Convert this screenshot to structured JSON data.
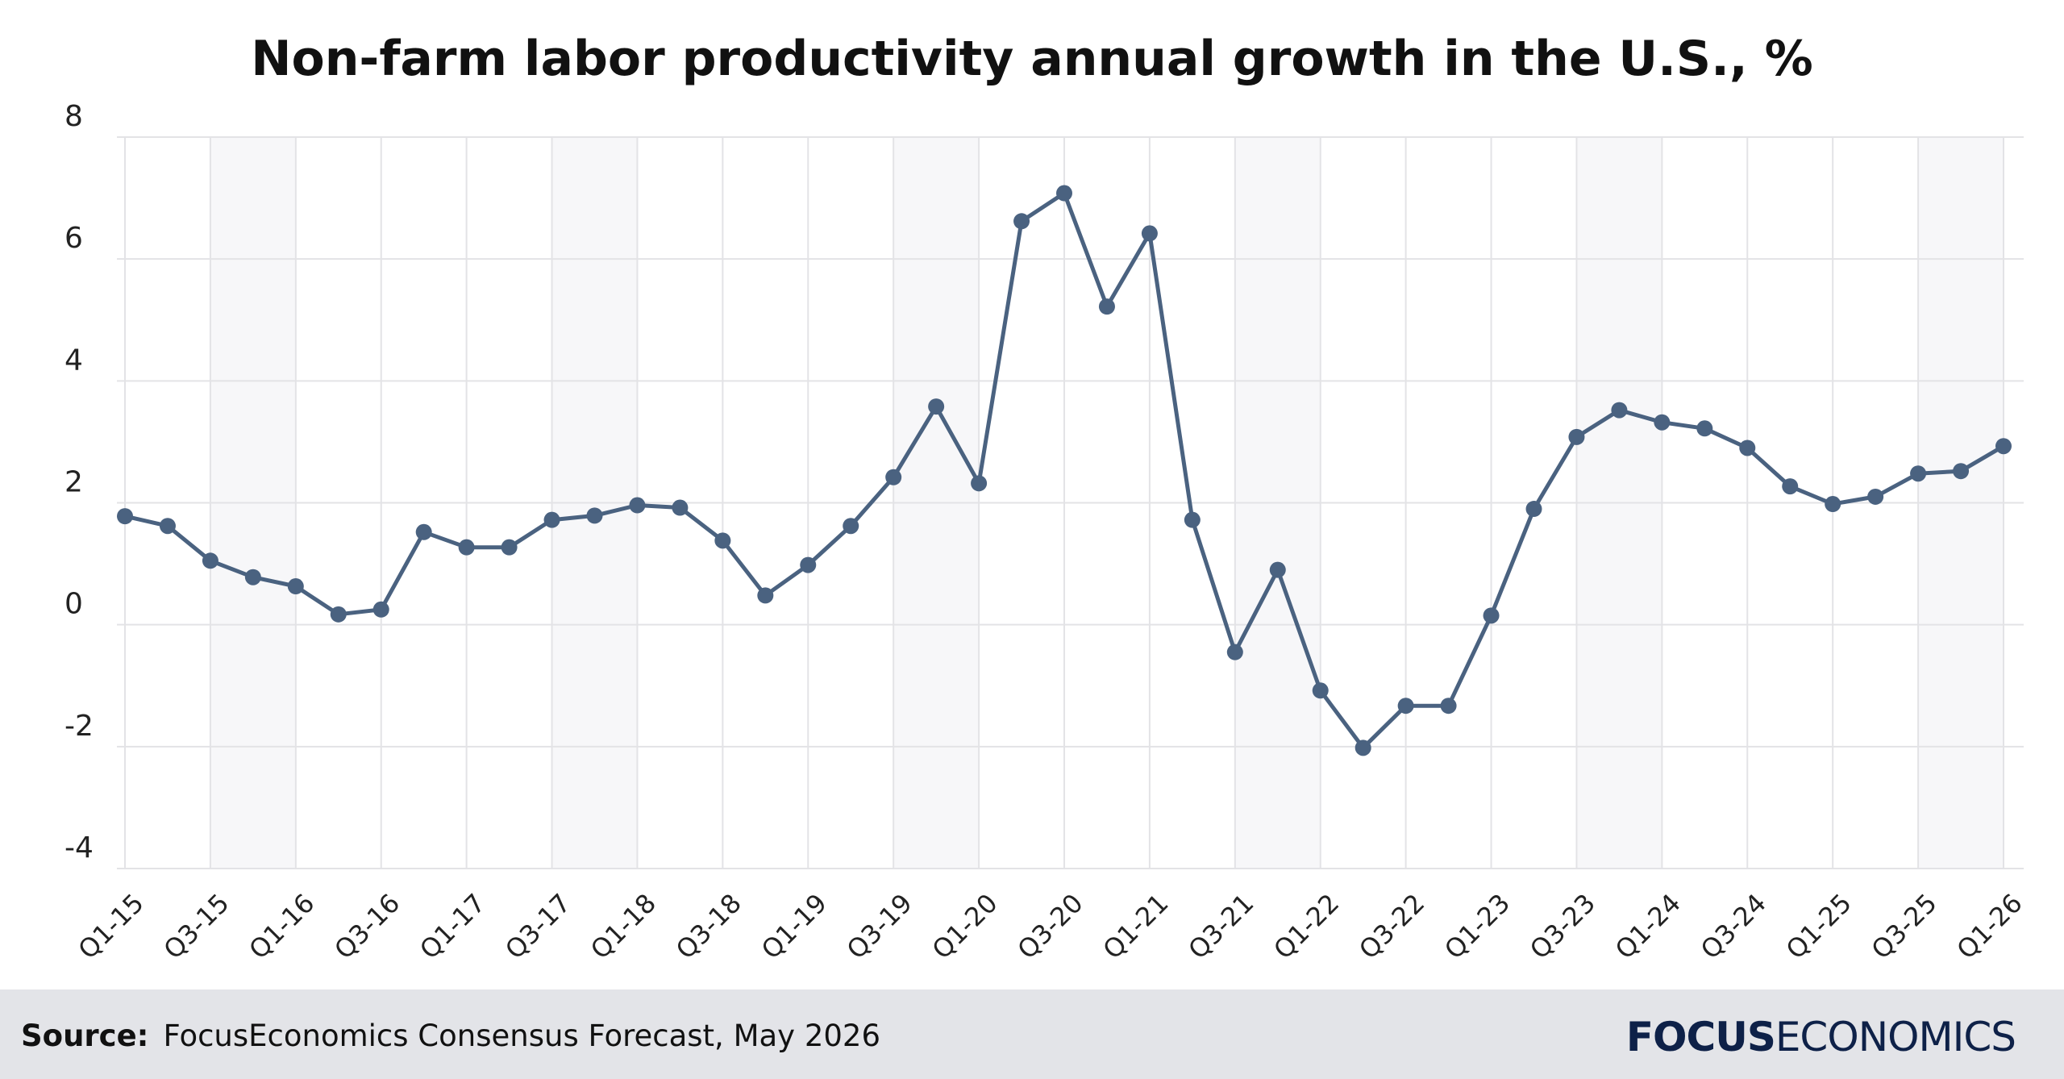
{
  "chart_data": {
    "type": "line",
    "title": "Non-farm labor productivity annual growth in the U.S., %",
    "ylim": [
      -4,
      8
    ],
    "yticks": [
      8,
      6,
      4,
      2,
      0,
      -2,
      -4
    ],
    "grid": true,
    "legend": "none",
    "x": [
      "Q1-15",
      "Q2-15",
      "Q3-15",
      "Q4-15",
      "Q1-16",
      "Q2-16",
      "Q3-16",
      "Q4-16",
      "Q1-17",
      "Q2-17",
      "Q3-17",
      "Q4-17",
      "Q1-18",
      "Q2-18",
      "Q3-18",
      "Q4-18",
      "Q1-19",
      "Q2-19",
      "Q3-19",
      "Q4-19",
      "Q1-20",
      "Q2-20",
      "Q3-20",
      "Q4-20",
      "Q1-21",
      "Q2-21",
      "Q3-21",
      "Q4-21",
      "Q1-22",
      "Q2-22",
      "Q3-22",
      "Q4-22",
      "Q1-23",
      "Q2-23",
      "Q3-23",
      "Q4-23",
      "Q1-24",
      "Q2-24",
      "Q3-24",
      "Q4-24",
      "Q1-25",
      "Q2-25",
      "Q3-25",
      "Q4-25",
      "Q1-26"
    ],
    "x_tick_labels": [
      "Q1-15",
      "Q3-15",
      "Q1-16",
      "Q3-16",
      "Q1-17",
      "Q3-17",
      "Q1-18",
      "Q3-18",
      "Q1-19",
      "Q3-19",
      "Q1-20",
      "Q3-20",
      "Q1-21",
      "Q3-21",
      "Q1-22",
      "Q3-22",
      "Q1-23",
      "Q3-23",
      "Q1-24",
      "Q3-24",
      "Q1-25",
      "Q3-25",
      "Q1-26"
    ],
    "series": [
      {
        "values": [
          1.78,
          1.62,
          1.05,
          0.78,
          0.63,
          0.17,
          0.25,
          1.52,
          1.27,
          1.27,
          1.72,
          1.79,
          1.96,
          1.92,
          1.38,
          0.48,
          0.98,
          1.62,
          2.42,
          3.58,
          2.32,
          6.62,
          7.08,
          5.22,
          6.42,
          1.72,
          -0.45,
          0.9,
          -1.08,
          -2.02,
          -1.33,
          -1.33,
          0.15,
          1.9,
          3.08,
          3.52,
          3.32,
          3.22,
          2.9,
          2.27,
          1.98,
          2.1,
          2.48,
          2.52,
          2.93
        ],
        "color": "#4a6280"
      }
    ]
  },
  "footer": {
    "source_label": "Source:",
    "source_text": "FocusEconomics Consensus Forecast, May 2026"
  },
  "logo": {
    "focus": "FOCUS",
    "economics": "ECONOMICS"
  }
}
